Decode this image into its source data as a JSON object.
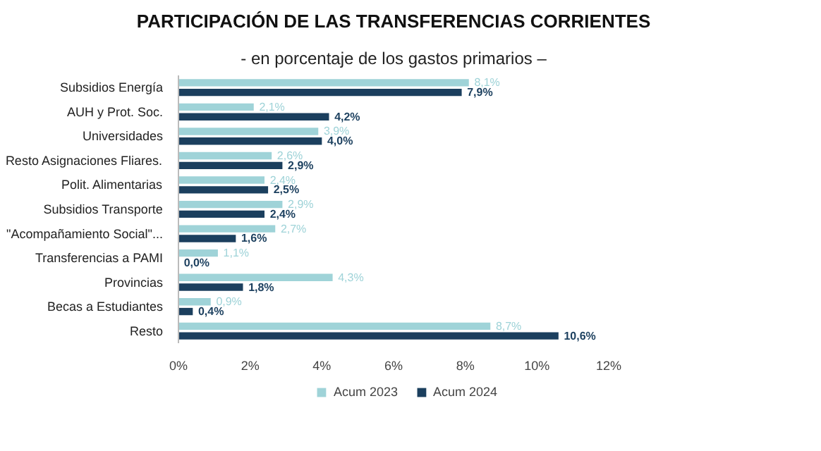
{
  "chart_data": {
    "type": "bar",
    "orientation": "horizontal",
    "title": "PARTICIPACIÓN DE LAS TRANSFERENCIAS CORRIENTES",
    "subtitle": "- en porcentaje de los gastos primarios –",
    "categories": [
      "Subsidios Energía",
      "AUH y Prot. Soc.",
      "Universidades",
      "Resto Asignaciones Fliares.",
      "Polit. Alimentarias",
      "Subsidios Transporte",
      "\"Acompañamiento Social\"...",
      "Transferencias a PAMI",
      "Provincias",
      "Becas a Estudiantes",
      "Resto"
    ],
    "series": [
      {
        "name": "Acum 2023",
        "color": "#9fd3d8",
        "values": [
          8.1,
          2.1,
          3.9,
          2.6,
          2.4,
          2.9,
          2.7,
          1.1,
          4.3,
          0.9,
          8.7
        ],
        "value_labels": [
          "8,1%",
          "2,1%",
          "3,9%",
          "2,6%",
          "2,4%",
          "2,9%",
          "2,7%",
          "1,1%",
          "4,3%",
          "0,9%",
          "8,7%"
        ]
      },
      {
        "name": "Acum 2024",
        "color": "#1b3f5e",
        "values": [
          7.9,
          4.2,
          4.0,
          2.9,
          2.5,
          2.4,
          1.6,
          0.0,
          1.8,
          0.4,
          10.6
        ],
        "value_labels": [
          "7,9%",
          "4,2%",
          "4,0%",
          "2,9%",
          "2,5%",
          "2,4%",
          "1,6%",
          "0,0%",
          "1,8%",
          "0,4%",
          "10,6%"
        ]
      }
    ],
    "xlim": [
      0,
      12
    ],
    "xticks": [
      {
        "value": 0,
        "label": "0%"
      },
      {
        "value": 2,
        "label": "2%"
      },
      {
        "value": 4,
        "label": "4%"
      },
      {
        "value": 6,
        "label": "6%"
      },
      {
        "value": 8,
        "label": "8%"
      },
      {
        "value": 10,
        "label": "10%"
      },
      {
        "value": 12,
        "label": "12%"
      }
    ],
    "grid": false,
    "legend": "bottom"
  }
}
